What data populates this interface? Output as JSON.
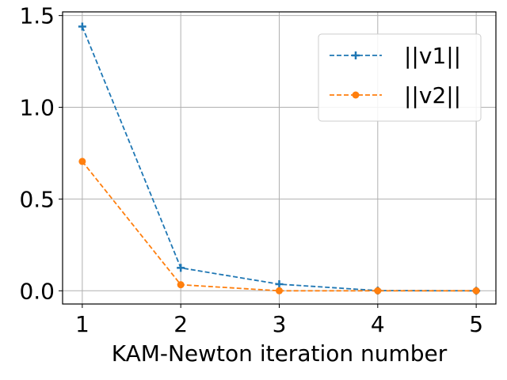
{
  "chart_data": {
    "type": "line",
    "title": "",
    "xlabel": "KAM-Newton iteration number",
    "ylabel": "",
    "x": [
      1,
      2,
      3,
      4,
      5
    ],
    "xticks": [
      "1",
      "2",
      "3",
      "4",
      "5"
    ],
    "yticks": [
      "0.0",
      "0.5",
      "1.0",
      "1.5"
    ],
    "ytick_values": [
      0.0,
      0.5,
      1.0,
      1.5
    ],
    "xlim": [
      0.8,
      5.2
    ],
    "ylim": [
      -0.072,
      1.52
    ],
    "grid": true,
    "legend_position": "top-right",
    "series": [
      {
        "name": "||v1||",
        "values": [
          1.44,
          0.125,
          0.036,
          0.001,
          0.0
        ],
        "color": "#1f77b4",
        "linestyle": "dashed",
        "marker": "plus"
      },
      {
        "name": "||v2||",
        "values": [
          0.705,
          0.033,
          0.0,
          0.0,
          0.0
        ],
        "color": "#ff7f0e",
        "linestyle": "dashed",
        "marker": "circle"
      }
    ]
  }
}
